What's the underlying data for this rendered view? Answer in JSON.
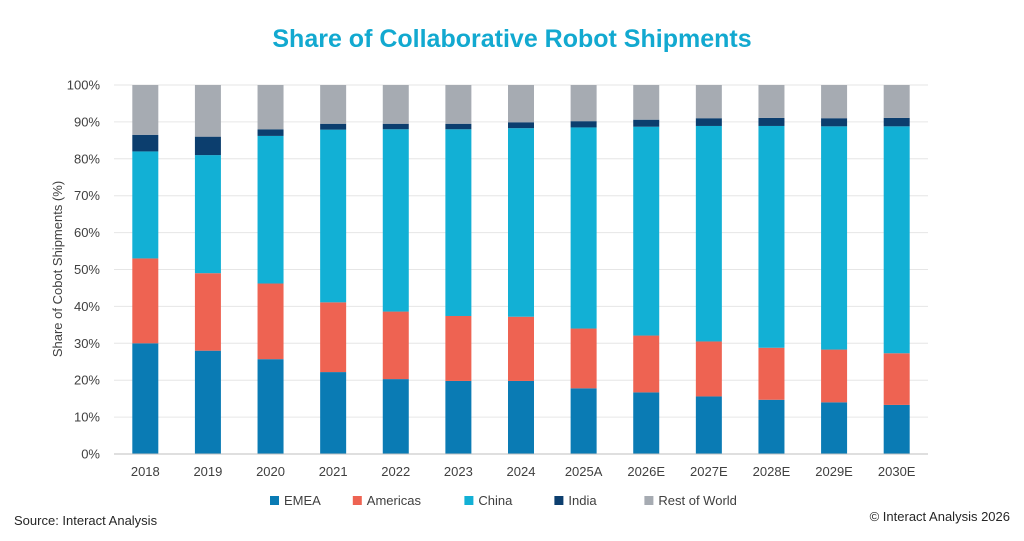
{
  "chart_data": {
    "type": "bar",
    "stacked": true,
    "title": "Share of Collaborative Robot Shipments",
    "ylabel": "Share of Cobot Shipments (%)",
    "xlabel": "",
    "ylim": [
      0,
      100
    ],
    "y_ticks": [
      "0%",
      "10%",
      "20%",
      "30%",
      "40%",
      "50%",
      "60%",
      "70%",
      "80%",
      "90%",
      "100%"
    ],
    "categories": [
      "2018",
      "2019",
      "2020",
      "2021",
      "2022",
      "2023",
      "2024",
      "2025A",
      "2026E",
      "2027E",
      "2028E",
      "2029E",
      "2030E"
    ],
    "series": [
      {
        "name": "EMEA",
        "color": "#0a7bb4",
        "values": [
          30,
          28,
          25.7,
          22.2,
          20.3,
          19.8,
          19.8,
          17.8,
          16.7,
          15.6,
          14.7,
          14,
          13.3
        ]
      },
      {
        "name": "Americas",
        "color": "#ee6352",
        "values": [
          23,
          21,
          20.5,
          18.9,
          18.3,
          17.6,
          17.4,
          16.2,
          15.4,
          14.9,
          14.1,
          14.3,
          14.0
        ]
      },
      {
        "name": "China",
        "color": "#12b0d5",
        "values": [
          29,
          32,
          40,
          46.8,
          49.4,
          50.6,
          51.1,
          54.5,
          56.6,
          58.4,
          60.1,
          60.5,
          61.5
        ]
      },
      {
        "name": "India",
        "color": "#0c3e6e",
        "values": [
          4.5,
          5,
          1.8,
          1.6,
          1.5,
          1.5,
          1.6,
          1.7,
          1.9,
          2.1,
          2.2,
          2.2,
          2.3
        ]
      },
      {
        "name": "Rest of World",
        "color": "#a6abb2",
        "values": [
          13.5,
          14,
          12,
          10.5,
          10.5,
          10.5,
          10.1,
          9.8,
          9.4,
          9.0,
          8.9,
          9.0,
          8.9
        ]
      }
    ],
    "grid": true,
    "legend_position": "bottom"
  },
  "title_color": "#12a9d0",
  "footer": {
    "source": "Source: Interact Analysis",
    "copyright": "© Interact Analysis 2026"
  }
}
